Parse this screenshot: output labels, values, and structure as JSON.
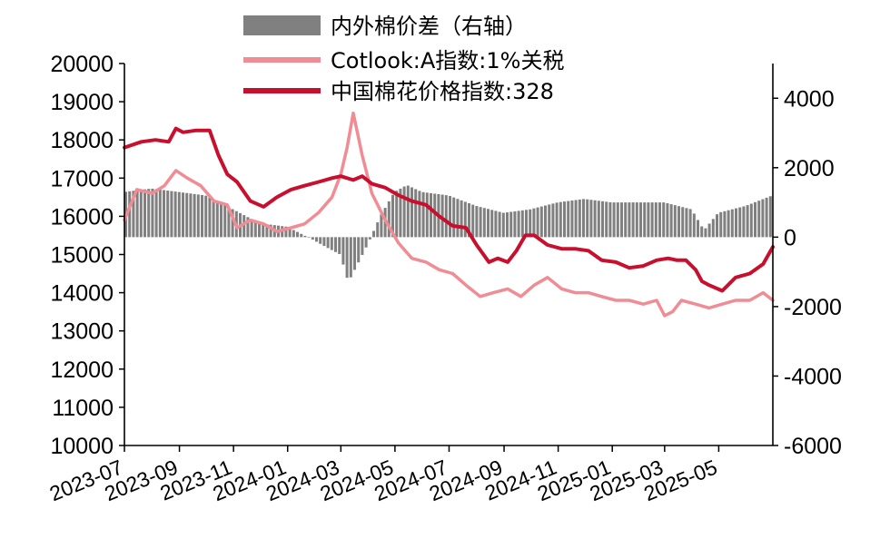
{
  "chart_data": {
    "type": "line",
    "legend": {
      "placement": "top-center",
      "entries": [
        {
          "key": "spread",
          "label": "内外棉价差（右轴）",
          "style": "bar",
          "color": "#808080"
        },
        {
          "key": "cotlook",
          "label": "Cotlook:A指数:1%关税",
          "style": "line",
          "color": "#f08c94"
        },
        {
          "key": "china",
          "label": "中国棉花价格指数:328",
          "style": "line",
          "color": "#c8102e"
        }
      ]
    },
    "left_axis": {
      "ylim": [
        10000,
        20000
      ],
      "ticks": [
        "10000",
        "11000",
        "12000",
        "13000",
        "14000",
        "15000",
        "16000",
        "17000",
        "18000",
        "19000",
        "20000"
      ]
    },
    "right_axis": {
      "ylim": [
        -6000,
        5000
      ],
      "ticks": [
        "-6000",
        "-4000",
        "-2000",
        "0",
        "2000",
        "4000"
      ]
    },
    "x_axis": {
      "range": [
        "2023-07-01",
        "2025-07-01"
      ],
      "ticks": [
        "2023-07",
        "2023-09",
        "2023-11",
        "2024-01",
        "2024-03",
        "2024-05",
        "2024-07",
        "2024-09",
        "2024-11",
        "2025-01",
        "2025-03",
        "2025-05"
      ]
    },
    "series": [
      {
        "key": "china",
        "name": "中国棉花价格指数:328",
        "axis": "left",
        "color": "#c8102e",
        "x": [
          "2023-07-01",
          "2023-07-20",
          "2023-08-05",
          "2023-08-20",
          "2023-08-28",
          "2023-09-05",
          "2023-09-20",
          "2023-10-05",
          "2023-10-15",
          "2023-10-25",
          "2023-11-05",
          "2023-11-20",
          "2023-12-05",
          "2023-12-20",
          "2024-01-05",
          "2024-01-20",
          "2024-02-05",
          "2024-02-20",
          "2024-03-01",
          "2024-03-15",
          "2024-03-25",
          "2024-04-05",
          "2024-04-20",
          "2024-05-05",
          "2024-05-20",
          "2024-06-05",
          "2024-06-20",
          "2024-07-05",
          "2024-07-20",
          "2024-08-01",
          "2024-08-15",
          "2024-08-25",
          "2024-09-05",
          "2024-09-15",
          "2024-09-25",
          "2024-10-05",
          "2024-10-20",
          "2024-11-05",
          "2024-11-20",
          "2024-12-05",
          "2024-12-20",
          "2025-01-05",
          "2025-01-20",
          "2025-02-05",
          "2025-02-20",
          "2025-03-05",
          "2025-03-15",
          "2025-03-25",
          "2025-04-05",
          "2025-04-12",
          "2025-04-20",
          "2025-05-05",
          "2025-05-20",
          "2025-06-05",
          "2025-06-20",
          "2025-07-01"
        ],
        "values": [
          17800,
          17950,
          18000,
          17950,
          18300,
          18200,
          18250,
          18250,
          17600,
          17100,
          16900,
          16400,
          16250,
          16500,
          16700,
          16800,
          16900,
          17000,
          17050,
          16950,
          17050,
          16850,
          16750,
          16550,
          16400,
          16300,
          16000,
          15750,
          15700,
          15250,
          14800,
          14900,
          14800,
          15100,
          15500,
          15500,
          15250,
          15150,
          15150,
          15100,
          14850,
          14800,
          14650,
          14700,
          14850,
          14900,
          14850,
          14850,
          14600,
          14300,
          14200,
          14050,
          14400,
          14500,
          14750,
          15200
        ]
      },
      {
        "key": "cotlook",
        "name": "Cotlook:A指数:1%关税",
        "axis": "left",
        "color": "#f08c94",
        "x": [
          "2023-07-01",
          "2023-07-15",
          "2023-08-01",
          "2023-08-15",
          "2023-08-28",
          "2023-09-10",
          "2023-09-25",
          "2023-10-10",
          "2023-10-25",
          "2023-11-05",
          "2023-11-20",
          "2023-12-05",
          "2023-12-20",
          "2024-01-05",
          "2024-01-20",
          "2024-02-05",
          "2024-02-20",
          "2024-03-01",
          "2024-03-08",
          "2024-03-15",
          "2024-03-25",
          "2024-04-05",
          "2024-04-20",
          "2024-05-05",
          "2024-05-20",
          "2024-06-05",
          "2024-06-20",
          "2024-07-05",
          "2024-07-20",
          "2024-08-05",
          "2024-08-20",
          "2024-09-05",
          "2024-09-20",
          "2024-10-05",
          "2024-10-20",
          "2024-11-05",
          "2024-11-20",
          "2024-12-05",
          "2024-12-20",
          "2025-01-05",
          "2025-01-20",
          "2025-02-05",
          "2025-02-20",
          "2025-03-01",
          "2025-03-10",
          "2025-03-20",
          "2025-04-05",
          "2025-04-20",
          "2025-05-05",
          "2025-05-20",
          "2025-06-05",
          "2025-06-20",
          "2025-07-01"
        ],
        "values": [
          15900,
          16700,
          16600,
          16800,
          17200,
          17000,
          16800,
          16400,
          16300,
          15700,
          15900,
          15800,
          15600,
          15700,
          15800,
          16100,
          16500,
          17100,
          17800,
          18700,
          17600,
          16600,
          15900,
          15300,
          14900,
          14800,
          14600,
          14500,
          14200,
          13900,
          14000,
          14100,
          13900,
          14200,
          14400,
          14100,
          14000,
          14000,
          13900,
          13800,
          13800,
          13700,
          13800,
          13400,
          13500,
          13800,
          13700,
          13600,
          13700,
          13800,
          13800,
          14000,
          13800
        ]
      },
      {
        "key": "spread",
        "name": "内外棉价差（右轴）",
        "axis": "right",
        "type": "bar",
        "color": "#808080",
        "x": [
          "2023-07-01",
          "2023-08-01",
          "2023-09-01",
          "2023-10-01",
          "2023-11-01",
          "2023-12-01",
          "2024-01-01",
          "2024-02-01",
          "2024-02-15",
          "2024-03-01",
          "2024-03-10",
          "2024-03-20",
          "2024-04-01",
          "2024-04-15",
          "2024-05-01",
          "2024-05-15",
          "2024-06-01",
          "2024-07-01",
          "2024-08-01",
          "2024-09-01",
          "2024-10-01",
          "2024-11-01",
          "2024-12-01",
          "2025-01-01",
          "2025-02-01",
          "2025-03-01",
          "2025-04-01",
          "2025-04-15",
          "2025-05-01",
          "2025-06-01",
          "2025-07-01"
        ],
        "values": [
          1300,
          1400,
          1300,
          1200,
          800,
          400,
          300,
          -100,
          -300,
          -500,
          -1300,
          -800,
          -200,
          600,
          1300,
          1500,
          1300,
          1200,
          900,
          700,
          800,
          1000,
          1100,
          1000,
          1000,
          1000,
          800,
          200,
          700,
          900,
          1200
        ]
      }
    ]
  }
}
